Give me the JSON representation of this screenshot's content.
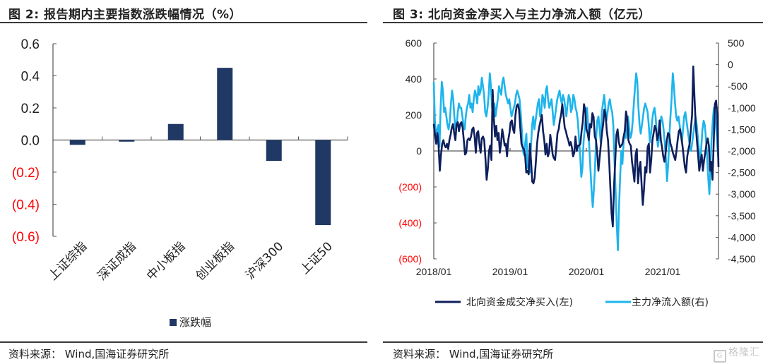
{
  "left_panel": {
    "title": "图 2:  报告期内主要指数涨跌幅情况（%）",
    "source": "资料来源：  Wind,国海证券研究所"
  },
  "right_panel": {
    "title": "图 3:  北向资金净买入与主力净流入额（亿元）",
    "source": "资料来源：  Wind,国海证券研究所",
    "watermark": "格隆汇"
  },
  "colors": {
    "bar": "#1f3864",
    "northbound": "#0d1f5c",
    "main_force": "#1eb4ec",
    "negative_label": "#ff0000",
    "axis": "#555555",
    "text": "#222222"
  },
  "chart_data": [
    {
      "type": "bar",
      "title": "报告期内主要指数涨跌幅情况（%）",
      "categories": [
        "上证综指",
        "深证成指",
        "中小板指",
        "创业板指",
        "沪深300",
        "上证50"
      ],
      "series": [
        {
          "name": "涨跌幅",
          "values": [
            -0.03,
            -0.01,
            0.1,
            0.45,
            -0.13,
            -0.53
          ]
        }
      ],
      "ylim": [
        -0.6,
        0.6
      ],
      "yticks": [
        0.6,
        0.4,
        0.2,
        0.0,
        -0.2,
        -0.4,
        -0.6
      ],
      "ytick_labels": [
        "0.6",
        "0.4",
        "0.2",
        "0.0",
        "(0.2)",
        "(0.4)",
        "(0.6)"
      ],
      "xlabel": "",
      "ylabel": "",
      "legend": "bottom-center",
      "grid": false
    },
    {
      "type": "line",
      "title": "北向资金净买入与主力净流入额（亿元）",
      "x_range": [
        "2018/01",
        "2021/10"
      ],
      "xtick_labels": [
        "2018/01",
        "2019/01",
        "2020/01",
        "2021/01"
      ],
      "y_left": {
        "ylim": [
          -600,
          600
        ],
        "yticks": [
          600,
          400,
          200,
          0,
          -200,
          -400,
          -600
        ],
        "ytick_labels": [
          "600",
          "400",
          "200",
          "0",
          "(200)",
          "(400)",
          "(600)"
        ]
      },
      "y_right": {
        "ylim": [
          -4500,
          500
        ],
        "yticks": [
          500,
          0,
          -500,
          -1000,
          -1500,
          -2000,
          -2500,
          -3000,
          -3500,
          -4000,
          -4500
        ],
        "ytick_labels": [
          "500",
          "0",
          "-500",
          "-1,000",
          "-1,500",
          "-2,000",
          "-2,500",
          "-3,000",
          "-3,500",
          "-4,000",
          "-4,500"
        ]
      },
      "legend": "bottom-center",
      "grid": false,
      "series": [
        {
          "name": "北向资金成交净买入(左)",
          "axis": "left",
          "values": [
            150,
            90,
            40,
            100,
            30,
            -110,
            -20,
            40,
            60,
            30,
            20,
            40,
            10,
            60,
            90,
            130,
            150,
            100,
            60,
            150,
            160,
            110,
            150,
            160,
            130,
            60,
            -20,
            -10,
            60,
            70,
            60,
            80,
            120,
            130,
            80,
            -10,
            100,
            110,
            40,
            -10,
            70,
            80,
            60,
            -40,
            -160,
            -100,
            0,
            30,
            -50,
            340,
            180,
            80,
            140,
            60,
            100,
            -10,
            40,
            120,
            80,
            30,
            40,
            -30,
            60,
            100,
            160,
            170,
            120,
            100,
            200,
            250,
            260,
            230,
            130,
            40,
            20,
            10,
            -20,
            -120,
            -110,
            -130,
            40,
            -60,
            -170,
            -180,
            -150,
            -60,
            40,
            100,
            140,
            170,
            200,
            110,
            60,
            -20,
            40,
            -30,
            -10,
            90,
            40,
            -20,
            -40,
            -50,
            20,
            100,
            120,
            170,
            200,
            260,
            200,
            130,
            110,
            80,
            60,
            30,
            50,
            20,
            -30,
            -10,
            80,
            0,
            30,
            30,
            40,
            110,
            160,
            260,
            230,
            120,
            100,
            60,
            150,
            130,
            210,
            190,
            80,
            60,
            -10,
            -110,
            -40,
            30,
            100,
            150,
            230,
            200,
            110,
            60,
            -60,
            -210,
            -350,
            -420,
            -200,
            -60,
            90,
            120,
            50,
            20,
            30,
            40,
            80,
            110,
            220,
            180,
            60,
            40,
            30,
            -60,
            -110,
            -170,
            -20,
            10,
            -180,
            -100,
            -60,
            -190,
            -300,
            -210,
            -90,
            -120,
            20,
            40,
            -120,
            -50,
            60,
            100,
            140,
            120,
            60,
            90,
            170,
            60,
            20,
            -30,
            -60,
            -10,
            60,
            100,
            90,
            40,
            20,
            -10,
            -30,
            -50,
            0,
            60,
            110,
            120,
            80,
            30,
            -30,
            -90,
            -120,
            -30,
            10,
            40,
            120,
            200,
            470,
            300,
            150,
            60,
            -20,
            -110,
            -60,
            -20,
            -110,
            -50,
            -10,
            40,
            70,
            30,
            -110,
            -60,
            -160,
            40,
            260,
            280,
            200,
            -90
          ]
        },
        {
          "name": "主力净流入额(右)",
          "axis": "right",
          "values": [
            -400,
            -1300,
            -1700,
            -1500,
            -1400,
            -1900,
            -1000,
            -400,
            -600,
            -1100,
            -1000,
            -1200,
            -1400,
            -1500,
            -1300,
            -900,
            -600,
            -800,
            -1200,
            -1500,
            -1400,
            -1100,
            -900,
            -1000,
            -1000,
            -1200,
            -1400,
            -1500,
            -1200,
            -1000,
            -900,
            -700,
            -1000,
            -900,
            -1100,
            -800,
            -600,
            -700,
            -900,
            -500,
            -700,
            -600,
            -300,
            -500,
            -700,
            -1100,
            -1200,
            -1000,
            -700,
            -200,
            -500,
            -1000,
            -1100,
            -900,
            -1200,
            -1000,
            -800,
            -500,
            -600,
            -700,
            -400,
            -300,
            -500,
            -700,
            -800,
            -900,
            -800,
            -1000,
            -1200,
            -1100,
            -1000,
            -900,
            -700,
            -600,
            -700,
            -800,
            -1100,
            -1500,
            -2000,
            -2100,
            -1800,
            -1600,
            -2400,
            -2300,
            -2500,
            -1900,
            -1400,
            -1200,
            -1500,
            -1300,
            -1100,
            -900,
            -800,
            -1200,
            -1100,
            -700,
            -800,
            -1000,
            -600,
            -500,
            -800,
            -1000,
            -900,
            -800,
            -1100,
            -1400,
            -1200,
            -1000,
            -800,
            -700,
            -600,
            -800,
            -900,
            -700,
            -800,
            -1000,
            -1200,
            -900,
            -700,
            -800,
            -1100,
            -1000,
            -700,
            -800,
            -1000,
            -1100,
            -1300,
            -1700,
            -2100,
            -2600,
            -2400,
            -1800,
            -1500,
            -1200,
            -1000,
            -1400,
            -1900,
            -2400,
            -2900,
            -3300,
            -2900,
            -2400,
            -1700,
            -1300,
            -1200,
            -1500,
            -1800,
            -1100,
            -900,
            -700,
            -1000,
            -1300,
            -1100,
            -900,
            -800,
            -1000,
            -1100,
            -1400,
            -2200,
            -2900,
            -3700,
            -4300,
            -3300,
            -2600,
            -2000,
            -2300,
            -1800,
            -1500,
            -1700,
            -1400,
            -1200,
            -1500,
            -1700,
            -1600,
            -1300,
            -900,
            -500,
            -200,
            -400,
            -1000,
            -1400,
            -1600,
            -1400,
            -1200,
            -1000,
            -900,
            -1000,
            -1100,
            -1400,
            -1800,
            -1600,
            -1300,
            -1100,
            -1000,
            -1200,
            -1600,
            -1900,
            -1700,
            -1400,
            -1200,
            -1300,
            -1500,
            -1800,
            -2200,
            -2700,
            -2300,
            -1700,
            -1200,
            -800,
            -200,
            -500,
            -900,
            -1200,
            -1300,
            -1200,
            -1400,
            -1600,
            -1800,
            -1500,
            -1200,
            -1100,
            -1300,
            -1500,
            -1700,
            -1900,
            -2000,
            -1800,
            -1600,
            -1400,
            -1200,
            -1400,
            -1700,
            -2000,
            -2300,
            -1900,
            -1500,
            -1300,
            -1400,
            -1700,
            -2100,
            -2600,
            -3000,
            -2300,
            -1700,
            -1300,
            -1000,
            -1100,
            -1500,
            -1900,
            -2200
          ]
        }
      ]
    }
  ]
}
